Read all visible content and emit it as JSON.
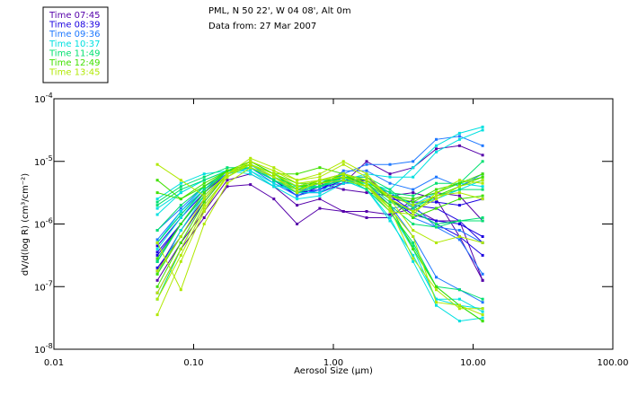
{
  "chart_data": {
    "type": "line",
    "title": "PML, N 50 22', W 04 08', Alt 0m",
    "subtitle": "Data from: 27 Mar 2007",
    "xlabel": "Aerosol Size (µm)",
    "ylabel": "dV/d(log R) (cm³/cm⁻²)",
    "xscale": "log",
    "yscale": "log",
    "xlim": [
      0.01,
      100
    ],
    "ylim": [
      1e-08,
      0.0001
    ],
    "xticks": [
      0.01,
      0.1,
      1,
      10,
      100
    ],
    "xtick_labels": [
      "0.01",
      "0.10",
      "1.00",
      "10.00",
      "100.00"
    ],
    "yticks": [
      0.0001,
      1e-05,
      1e-06,
      1e-07,
      1e-08
    ],
    "ytick_labels": [
      {
        "base": "10",
        "exp": "-4"
      },
      {
        "base": "10",
        "exp": "-5"
      },
      {
        "base": "10",
        "exp": "-6"
      },
      {
        "base": "10",
        "exp": "-7"
      },
      {
        "base": "10",
        "exp": "-8"
      }
    ],
    "grid": false,
    "legend_position": "top-left",
    "x": [
      0.055,
      0.081,
      0.119,
      0.174,
      0.255,
      0.375,
      0.55,
      0.8,
      1.18,
      1.73,
      2.54,
      3.72,
      5.45,
      8.0,
      11.7
    ],
    "groups": [
      {
        "name": "Time 07:45",
        "color": "#5500aa"
      },
      {
        "name": "Time 08:39",
        "color": "#1a00e0"
      },
      {
        "name": "Time 09:36",
        "color": "#1e78ff"
      },
      {
        "name": "Time 10:37",
        "color": "#00e0e0"
      },
      {
        "name": "Time 11:49",
        "color": "#00e070"
      },
      {
        "name": "Time 12:49",
        "color": "#40e000"
      },
      {
        "name": "Time 13:45",
        "color": "#b0e800"
      }
    ],
    "series": [
      {
        "group": 0,
        "log_values": [
          -7.1,
          -6.4,
          -5.9,
          -5.4,
          -5.37,
          -5.6,
          -6.0,
          -5.75,
          -5.8,
          -5.8,
          -5.85,
          -5.75,
          -5.95,
          -5.95,
          -6.9
        ]
      },
      {
        "group": 0,
        "log_values": [
          -6.9,
          -6.3,
          -5.8,
          -5.3,
          -5.2,
          -5.4,
          -5.7,
          -5.6,
          -5.8,
          -5.9,
          -5.9,
          -5.6,
          -5.5,
          -5.55,
          -5.95
        ]
      },
      {
        "group": 0,
        "log_values": [
          -6.75,
          -6.1,
          -5.6,
          -5.2,
          -5.1,
          -5.3,
          -5.5,
          -5.4,
          -5.35,
          -5.0,
          -5.2,
          -5.1,
          -4.8,
          -4.75,
          -4.9
        ]
      },
      {
        "group": 0,
        "log_values": [
          -6.6,
          -6.0,
          -5.5,
          -5.15,
          -5.05,
          -5.25,
          -5.45,
          -5.35,
          -5.45,
          -5.5,
          -5.55,
          -5.5,
          -5.6,
          -6.2,
          -6.9
        ]
      },
      {
        "group": 1,
        "log_values": [
          -6.5,
          -6.0,
          -5.5,
          -5.2,
          -5.05,
          -5.3,
          -5.5,
          -5.45,
          -5.3,
          -5.3,
          -5.6,
          -5.85,
          -5.95,
          -6.0,
          -6.2
        ]
      },
      {
        "group": 1,
        "log_values": [
          -6.35,
          -5.9,
          -5.5,
          -5.15,
          -5.1,
          -5.3,
          -5.55,
          -5.45,
          -5.25,
          -5.25,
          -5.55,
          -5.7,
          -5.75,
          -5.95,
          -6.3
        ]
      },
      {
        "group": 1,
        "log_values": [
          -6.7,
          -6.2,
          -5.65,
          -5.2,
          -5.1,
          -5.3,
          -5.55,
          -5.4,
          -5.2,
          -5.3,
          -5.6,
          -5.65,
          -5.65,
          -5.7,
          -5.6
        ]
      },
      {
        "group": 1,
        "log_values": [
          -6.45,
          -6.0,
          -5.55,
          -5.2,
          -5.1,
          -5.3,
          -5.5,
          -5.5,
          -5.35,
          -5.3,
          -5.55,
          -5.8,
          -6.0,
          -6.2,
          -6.5
        ]
      },
      {
        "group": 2,
        "log_values": [
          -6.1,
          -5.75,
          -5.4,
          -5.2,
          -5.1,
          -5.35,
          -5.55,
          -5.45,
          -5.15,
          -5.15,
          -5.35,
          -5.45,
          -5.25,
          -5.4,
          -5.2
        ]
      },
      {
        "group": 2,
        "log_values": [
          -6.25,
          -5.8,
          -5.45,
          -5.2,
          -5.1,
          -5.25,
          -5.45,
          -5.5,
          -5.2,
          -5.05,
          -5.05,
          -5.0,
          -4.65,
          -4.6,
          -4.75
        ]
      },
      {
        "group": 2,
        "log_values": [
          -6.55,
          -6.0,
          -5.5,
          -5.15,
          -5.0,
          -5.2,
          -5.4,
          -5.3,
          -5.2,
          -5.3,
          -5.6,
          -5.9,
          -6.05,
          -6.1,
          -6.3
        ]
      },
      {
        "group": 2,
        "log_values": [
          -6.3,
          -5.85,
          -5.45,
          -5.2,
          -5.05,
          -5.25,
          -5.5,
          -5.35,
          -5.25,
          -5.35,
          -5.7,
          -6.2,
          -6.85,
          -7.05,
          -7.25
        ]
      },
      {
        "group": 2,
        "log_values": [
          -6.6,
          -6.0,
          -5.5,
          -5.15,
          -5.05,
          -5.2,
          -5.4,
          -5.3,
          -5.3,
          -5.4,
          -5.75,
          -5.7,
          -6.05,
          -6.25,
          -6.8
        ]
      },
      {
        "group": 3,
        "log_values": [
          -5.75,
          -5.5,
          -5.3,
          -5.15,
          -5.15,
          -5.4,
          -5.6,
          -5.55,
          -5.35,
          -5.35,
          -5.5,
          -5.7,
          -5.6,
          -5.45,
          -5.3
        ]
      },
      {
        "group": 3,
        "log_values": [
          -5.6,
          -5.35,
          -5.2,
          -5.15,
          -5.2,
          -5.4,
          -5.4,
          -5.3,
          -5.3,
          -5.35,
          -5.45,
          -5.1,
          -4.75,
          -4.55,
          -4.45
        ]
      },
      {
        "group": 3,
        "log_values": [
          -5.85,
          -5.5,
          -5.3,
          -5.15,
          -5.15,
          -5.35,
          -5.5,
          -5.5,
          -5.3,
          -5.2,
          -5.25,
          -5.25,
          -4.85,
          -4.65,
          -4.5
        ]
      },
      {
        "group": 3,
        "log_values": [
          -6.3,
          -5.8,
          -5.4,
          -5.15,
          -5.05,
          -5.25,
          -5.45,
          -5.35,
          -5.25,
          -5.45,
          -5.8,
          -6.4,
          -7.2,
          -7.2,
          -7.4
        ]
      },
      {
        "group": 3,
        "log_values": [
          -6.6,
          -6.0,
          -5.5,
          -5.15,
          -5.05,
          -5.3,
          -5.5,
          -5.4,
          -5.3,
          -5.45,
          -5.9,
          -6.6,
          -7.3,
          -7.55,
          -7.5
        ]
      },
      {
        "group": 3,
        "log_values": [
          -6.4,
          -5.9,
          -5.45,
          -5.15,
          -5.05,
          -5.25,
          -5.4,
          -5.4,
          -5.25,
          -5.3,
          -5.5,
          -5.7,
          -5.5,
          -5.35,
          -5.4
        ]
      },
      {
        "group": 3,
        "log_values": [
          -6.8,
          -6.1,
          -5.55,
          -5.2,
          -5.1,
          -5.3,
          -5.45,
          -5.4,
          -5.3,
          -5.45,
          -5.95,
          -6.5,
          -7.2,
          -7.3,
          -7.35
        ]
      },
      {
        "group": 4,
        "log_values": [
          -5.65,
          -5.4,
          -5.25,
          -5.1,
          -5.1,
          -5.3,
          -5.45,
          -5.4,
          -5.2,
          -5.3,
          -5.5,
          -5.55,
          -5.35,
          -5.35,
          -5.0
        ]
      },
      {
        "group": 4,
        "log_values": [
          -5.7,
          -5.45,
          -5.3,
          -5.15,
          -5.1,
          -5.3,
          -5.5,
          -5.4,
          -5.25,
          -5.25,
          -5.45,
          -5.75,
          -5.55,
          -5.45,
          -5.45
        ]
      },
      {
        "group": 4,
        "log_values": [
          -6.1,
          -5.7,
          -5.4,
          -5.15,
          -5.05,
          -5.25,
          -5.4,
          -5.4,
          -5.3,
          -5.4,
          -5.7,
          -6.0,
          -6.05,
          -5.95,
          -5.95
        ]
      },
      {
        "group": 4,
        "log_values": [
          -7.2,
          -6.4,
          -5.7,
          -5.25,
          -5.05,
          -5.2,
          -5.4,
          -5.3,
          -5.25,
          -5.45,
          -5.8,
          -6.3,
          -7.0,
          -7.05,
          -7.2
        ]
      },
      {
        "group": 4,
        "log_values": [
          -6.6,
          -6.0,
          -5.55,
          -5.2,
          -5.05,
          -5.2,
          -5.4,
          -5.35,
          -5.25,
          -5.35,
          -5.65,
          -5.8,
          -6.0,
          -5.95,
          -5.9
        ]
      },
      {
        "group": 4,
        "log_values": [
          -6.3,
          -5.85,
          -5.45,
          -5.15,
          -5.05,
          -5.25,
          -5.5,
          -5.4,
          -5.3,
          -5.4,
          -5.8,
          -6.35,
          -7.0,
          -7.3,
          -7.55
        ]
      },
      {
        "group": 5,
        "log_values": [
          -5.3,
          -5.6,
          -5.35,
          -5.15,
          -5.05,
          -5.2,
          -5.2,
          -5.1,
          -5.2,
          -5.3,
          -5.55,
          -5.6,
          -5.5,
          -5.35,
          -5.25
        ]
      },
      {
        "group": 5,
        "log_values": [
          -5.5,
          -5.6,
          -5.4,
          -5.15,
          -5.05,
          -5.25,
          -5.45,
          -5.35,
          -5.25,
          -5.35,
          -5.6,
          -5.9,
          -5.75,
          -5.6,
          -5.55
        ]
      },
      {
        "group": 5,
        "log_values": [
          -6.55,
          -6.0,
          -5.5,
          -5.15,
          -5.0,
          -5.2,
          -5.35,
          -5.35,
          -5.25,
          -5.3,
          -5.55,
          -5.65,
          -5.45,
          -5.35,
          -5.2
        ]
      },
      {
        "group": 5,
        "log_values": [
          -7.0,
          -6.3,
          -5.65,
          -5.2,
          -5.05,
          -5.2,
          -5.4,
          -5.35,
          -5.2,
          -5.4,
          -5.7,
          -6.4,
          -7.0,
          -7.3,
          -7.55
        ]
      },
      {
        "group": 5,
        "log_values": [
          -6.8,
          -6.2,
          -5.6,
          -5.2,
          -5.05,
          -5.2,
          -5.45,
          -5.3,
          -5.2,
          -5.3,
          -5.6,
          -5.8,
          -5.55,
          -5.4,
          -5.25
        ]
      },
      {
        "group": 6,
        "log_values": [
          -5.05,
          -5.3,
          -5.55,
          -5.2,
          -5.05,
          -5.25,
          -5.45,
          -5.35,
          -5.3,
          -5.4,
          -5.8,
          -5.85,
          -5.5,
          -5.3,
          -5.35
        ]
      },
      {
        "group": 6,
        "log_values": [
          -6.3,
          -7.05,
          -6.0,
          -5.35,
          -5.1,
          -5.25,
          -5.5,
          -5.3,
          -5.2,
          -5.3,
          -5.55,
          -5.7,
          -5.55,
          -5.5,
          -5.6
        ]
      },
      {
        "group": 6,
        "log_values": [
          -6.75,
          -6.2,
          -5.6,
          -5.2,
          -5.0,
          -5.15,
          -5.3,
          -5.25,
          -5.05,
          -5.25,
          -5.6,
          -5.8,
          -5.6,
          -5.4,
          -5.3
        ]
      },
      {
        "group": 6,
        "log_values": [
          -7.1,
          -6.4,
          -5.7,
          -5.25,
          -5.0,
          -5.15,
          -5.35,
          -5.3,
          -5.2,
          -5.35,
          -5.75,
          -6.55,
          -7.05,
          -7.35,
          -7.35
        ]
      },
      {
        "group": 6,
        "log_values": [
          -7.45,
          -6.6,
          -5.8,
          -5.2,
          -4.95,
          -5.1,
          -5.3,
          -5.2,
          -5.0,
          -5.2,
          -5.6,
          -6.1,
          -6.3,
          -6.2,
          -6.3
        ]
      },
      {
        "group": 6,
        "log_values": [
          -7.2,
          -6.5,
          -5.75,
          -5.25,
          -5.05,
          -5.2,
          -5.4,
          -5.3,
          -5.25,
          -5.4,
          -5.75,
          -6.2,
          -7.25,
          -7.3,
          -7.45
        ]
      }
    ]
  }
}
